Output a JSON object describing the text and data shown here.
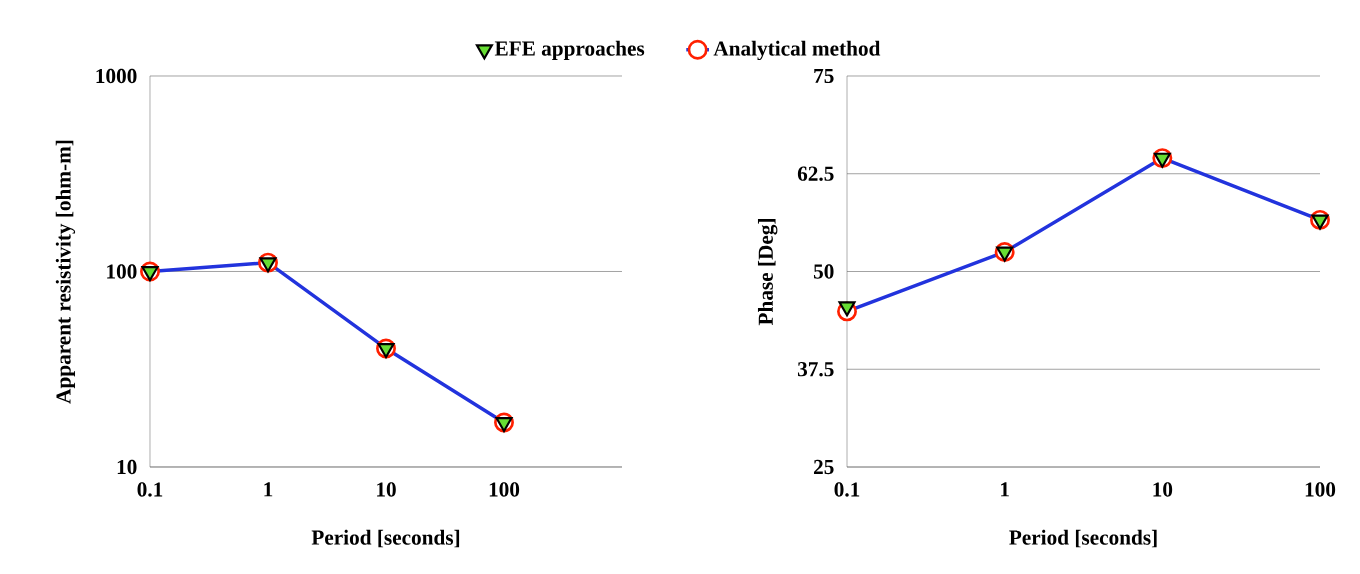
{
  "chart_data": [
    {
      "type": "line",
      "xlabel": "Period [seconds]",
      "ylabel": "Apparent resistivity [ohm-m]",
      "log": "xy",
      "grid": "y",
      "legend": "top",
      "x": [
        0.1,
        1,
        10,
        100
      ],
      "xlim": [
        0.1,
        1000
      ],
      "xticks": [
        0.1,
        1,
        10,
        100
      ],
      "ylim": [
        10,
        1000
      ],
      "yticks": [
        10,
        100,
        1000
      ],
      "series": [
        {
          "name": "EFE approaches",
          "type": "scatter",
          "marker": "triangle",
          "color": "#66dd33",
          "values": [
            100,
            111,
            40.4,
            16.9
          ]
        },
        {
          "name": "Analytical method",
          "marker": "circle",
          "color": "#2233dd",
          "values": [
            100,
            111,
            40.4,
            16.9
          ]
        }
      ]
    },
    {
      "type": "line",
      "xlabel": "Period [seconds]",
      "ylabel": "Phase [Deg]",
      "log": "x",
      "grid": "y",
      "x": [
        0.1,
        1,
        10,
        100
      ],
      "xlim": [
        0.1,
        100
      ],
      "xticks": [
        0.1,
        1,
        10,
        100
      ],
      "ylim": [
        25,
        75
      ],
      "yticks": [
        25,
        37.5,
        50,
        62.5,
        75
      ],
      "series": [
        {
          "type": "scatter",
          "marker": "triangle",
          "color": "#66dd33",
          "values": [
            45.5,
            52.5,
            64.5,
            56.6
          ]
        },
        {
          "marker": "circle",
          "color": "#2233dd",
          "values": [
            44.9,
            52.5,
            64.5,
            56.6
          ]
        }
      ]
    }
  ]
}
